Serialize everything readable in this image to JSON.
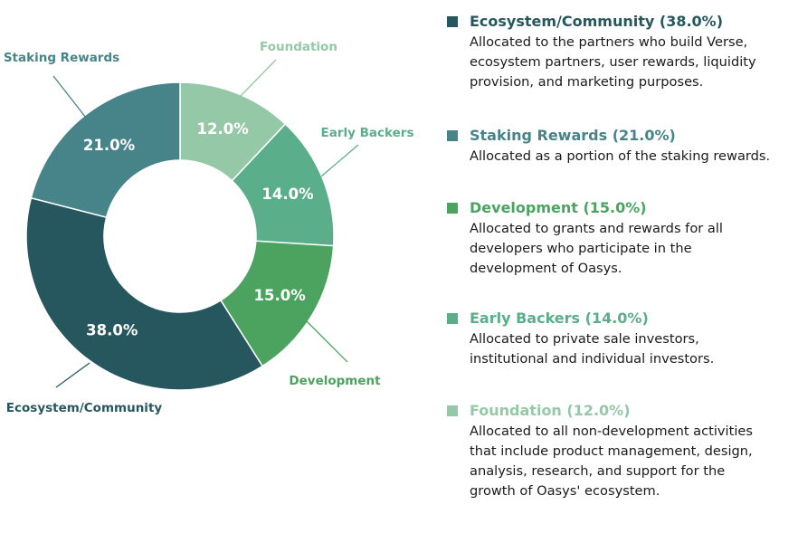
{
  "chart_data": {
    "type": "pie",
    "variant": "donut",
    "slices": [
      {
        "label": "Foundation",
        "value": 12.0,
        "display": "12.0%",
        "color": "#95c8a6"
      },
      {
        "label": "Early Backers",
        "value": 14.0,
        "display": "14.0%",
        "color": "#5bae8a"
      },
      {
        "label": "Development",
        "value": 15.0,
        "display": "15.0%",
        "color": "#4ba35f"
      },
      {
        "label": "Ecosystem/Community",
        "value": 38.0,
        "display": "38.0%",
        "color": "#27575e"
      },
      {
        "label": "Staking Rewards",
        "value": 21.0,
        "display": "21.0%",
        "color": "#478489"
      }
    ],
    "label_colors": {
      "Foundation": "#95c8a6",
      "Early Backers": "#5bae8a",
      "Development": "#4ba35f",
      "Ecosystem/Community": "#27575e",
      "Staking Rewards": "#478489"
    },
    "legend_placement": "right"
  },
  "legend": [
    {
      "title": "Ecosystem/Community (38.0%)",
      "color": "#27575e",
      "lines": [
        "Allocated to the partners who build Verse,",
        "ecosystem partners, user rewards, liquidity",
        "provision, and marketing purposes."
      ]
    },
    {
      "title": "Staking Rewards (21.0%)",
      "color": "#478489",
      "lines": [
        "Allocated as a portion of the staking rewards."
      ]
    },
    {
      "title": "Development (15.0%)",
      "color": "#4ba35f",
      "lines": [
        "Allocated to grants and rewards for all",
        "developers who participate in the",
        "development of Oasys."
      ]
    },
    {
      "title": "Early Backers (14.0%)",
      "color": "#5bae8a",
      "lines": [
        "Allocated to private sale investors,",
        "institutional and individual investors."
      ]
    },
    {
      "title": "Foundation (12.0%)",
      "color": "#95c8a6",
      "lines": [
        "Allocated to all non-development activities",
        "that include product management, design,",
        "analysis, research, and support for the",
        "growth of Oasys' ecosystem."
      ]
    }
  ]
}
